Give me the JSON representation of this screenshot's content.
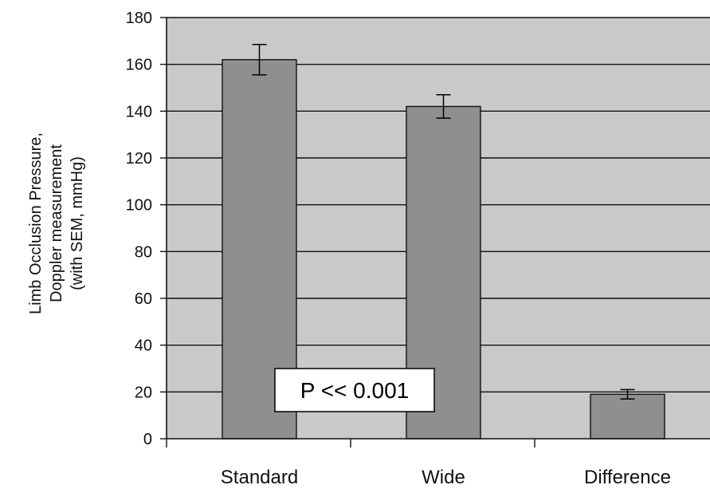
{
  "chart_data": {
    "type": "bar",
    "title": "",
    "xlabel": "",
    "ylabel_lines": [
      "Limb Occlusion Pressure,",
      "Doppler measurement",
      "(with SEM, mmHg)"
    ],
    "categories": [
      "Standard",
      "Wide",
      "Difference"
    ],
    "values": [
      162,
      142,
      19
    ],
    "errors": [
      6.5,
      5,
      2
    ],
    "ylim": [
      0,
      180
    ],
    "yticks": [
      0,
      20,
      40,
      60,
      80,
      100,
      120,
      140,
      160,
      180
    ],
    "grid": true,
    "legend": "none",
    "annotation": "P << 0.001",
    "colors": {
      "plot_background": "#c9c9c9",
      "bar_fill": "#8f8f8f",
      "bar_stroke": "#111111",
      "grid": "#111111",
      "axis": "#111111"
    }
  }
}
